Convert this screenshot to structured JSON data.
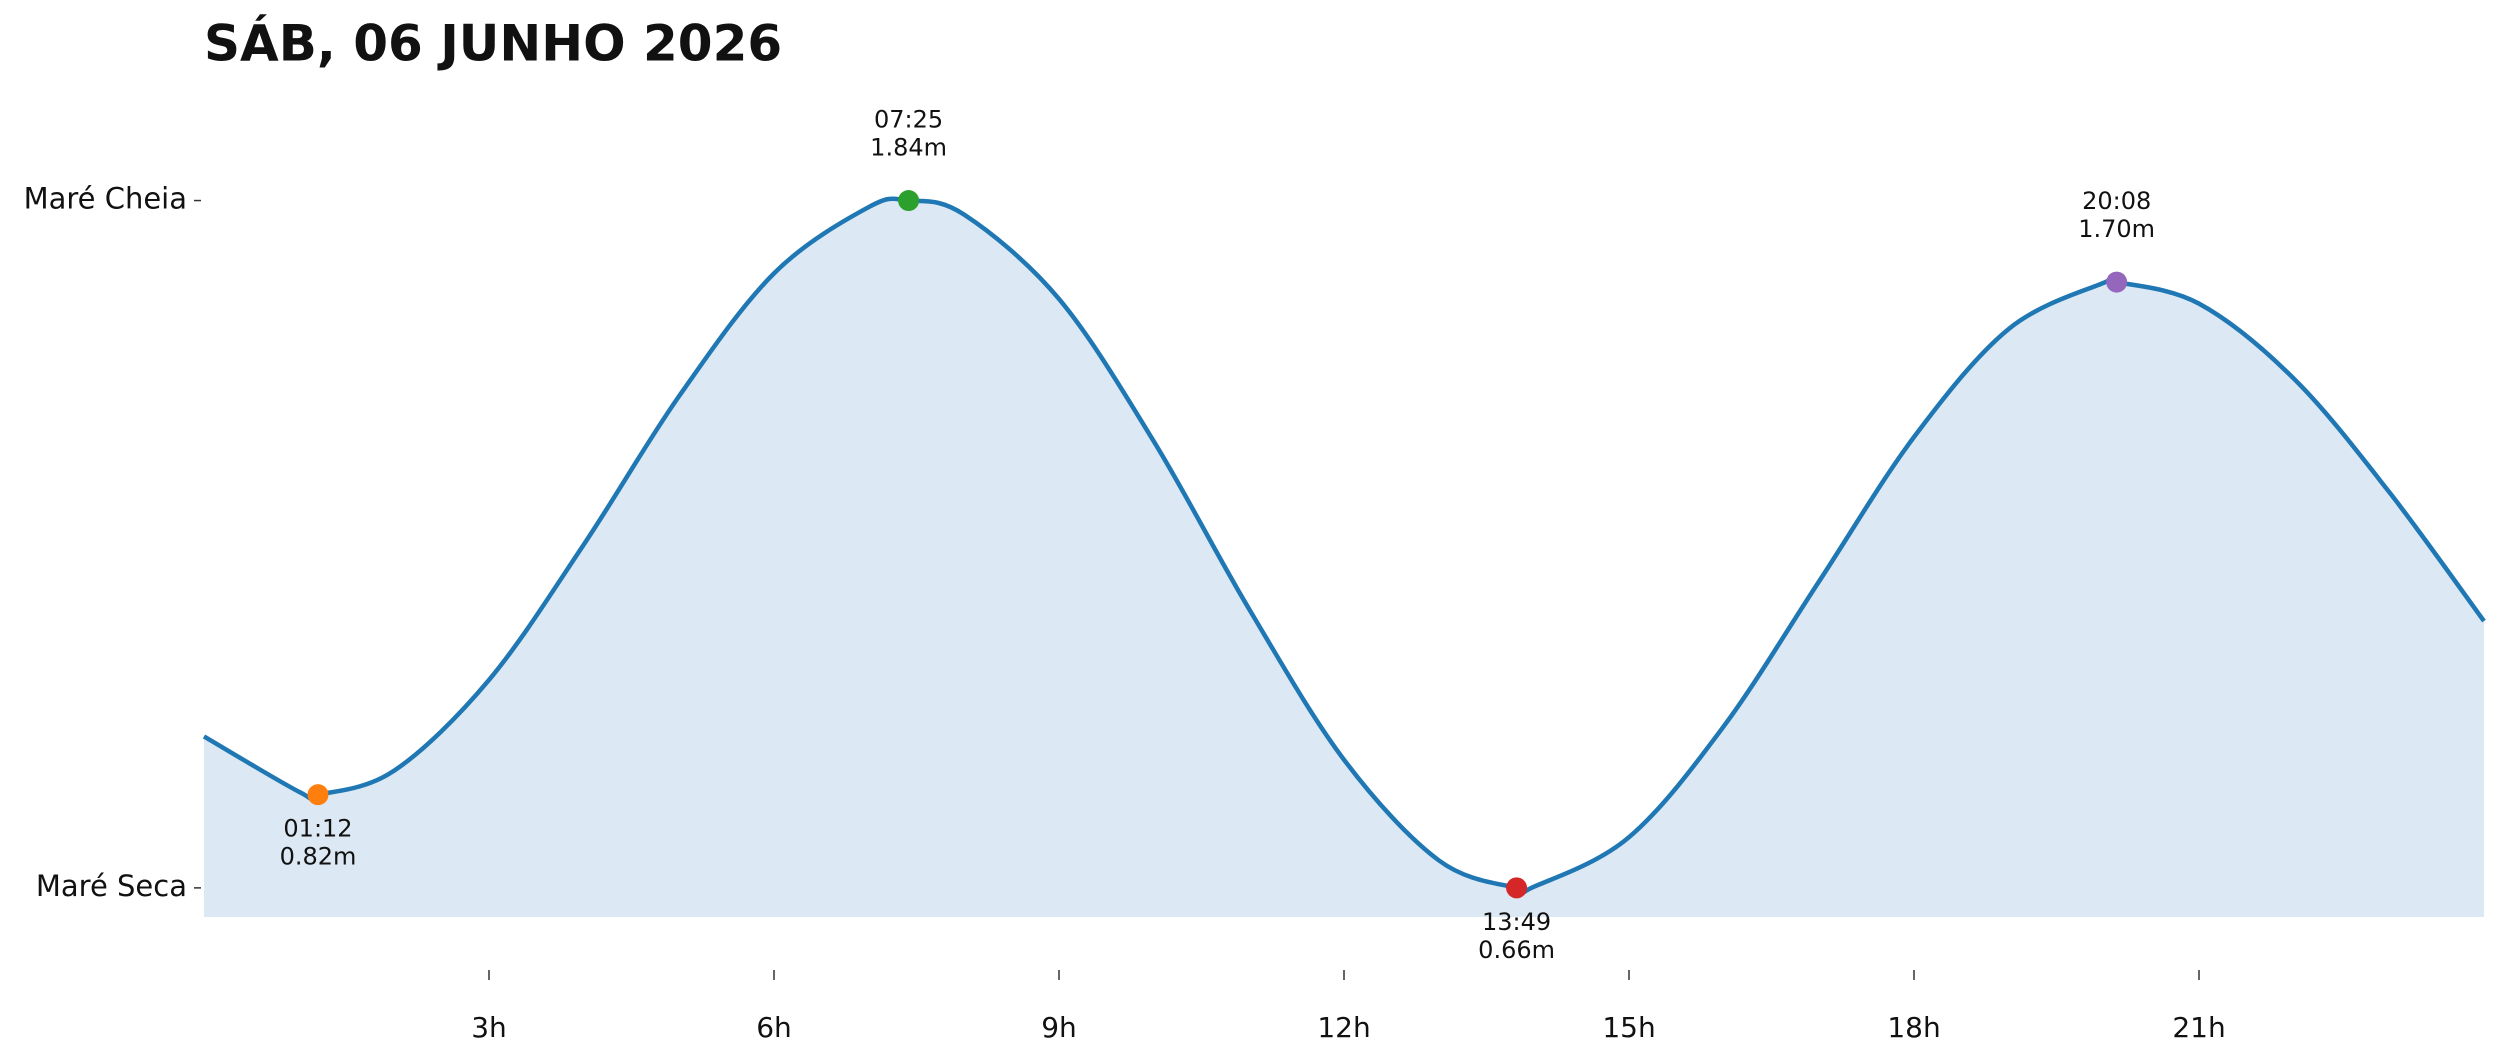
{
  "chart_data": {
    "type": "line",
    "title": "SÁB, 06 JUNHO 2026",
    "xlim": [
      0,
      24
    ],
    "xticks": [
      {
        "value": 3,
        "label": "3h"
      },
      {
        "value": 6,
        "label": "6h"
      },
      {
        "value": 9,
        "label": "9h"
      },
      {
        "value": 12,
        "label": "12h"
      },
      {
        "value": 15,
        "label": "15h"
      },
      {
        "value": 18,
        "label": "18h"
      },
      {
        "value": 21,
        "label": "21h"
      }
    ],
    "ylim": [
      0.61,
      1.98
    ],
    "yticks": [
      {
        "value": 1.84,
        "label": "Maré Cheia"
      },
      {
        "value": 0.66,
        "label": "Maré Seca"
      }
    ],
    "fill_color": "#dce8f3",
    "series": [
      {
        "color": "#1f77b4",
        "x": [
          0,
          1,
          1.2,
          2,
          3,
          4,
          5,
          6,
          7,
          7.4167,
          8,
          9,
          10,
          11,
          12,
          13,
          13.8167,
          14,
          15,
          16,
          17,
          18,
          19,
          20,
          20.1333,
          21,
          22,
          23,
          24
        ],
        "values": [
          0.92,
          0.825,
          0.82,
          0.861,
          1.017,
          1.25,
          1.504,
          1.715,
          1.829,
          1.84,
          1.816,
          1.671,
          1.426,
          1.139,
          0.88,
          0.707,
          0.66,
          0.662,
          0.747,
          0.938,
          1.186,
          1.434,
          1.62,
          1.699,
          1.7,
          1.663,
          1.534,
          1.34,
          1.118
        ]
      }
    ],
    "extremes": {
      "x": [
        1.2,
        7.4167,
        13.8167,
        20.1333
      ],
      "x_labels": [
        "01:12",
        "07:25",
        "13:49",
        "20:08"
      ],
      "values": [
        0.82,
        1.84,
        0.66,
        1.7
      ],
      "value_labels": [
        "0.82m",
        "1.84m",
        "0.66m",
        "1.70m"
      ],
      "colors": [
        "#ff7f0e",
        "#2ca02c",
        "#d62728",
        "#9467bd"
      ]
    }
  }
}
